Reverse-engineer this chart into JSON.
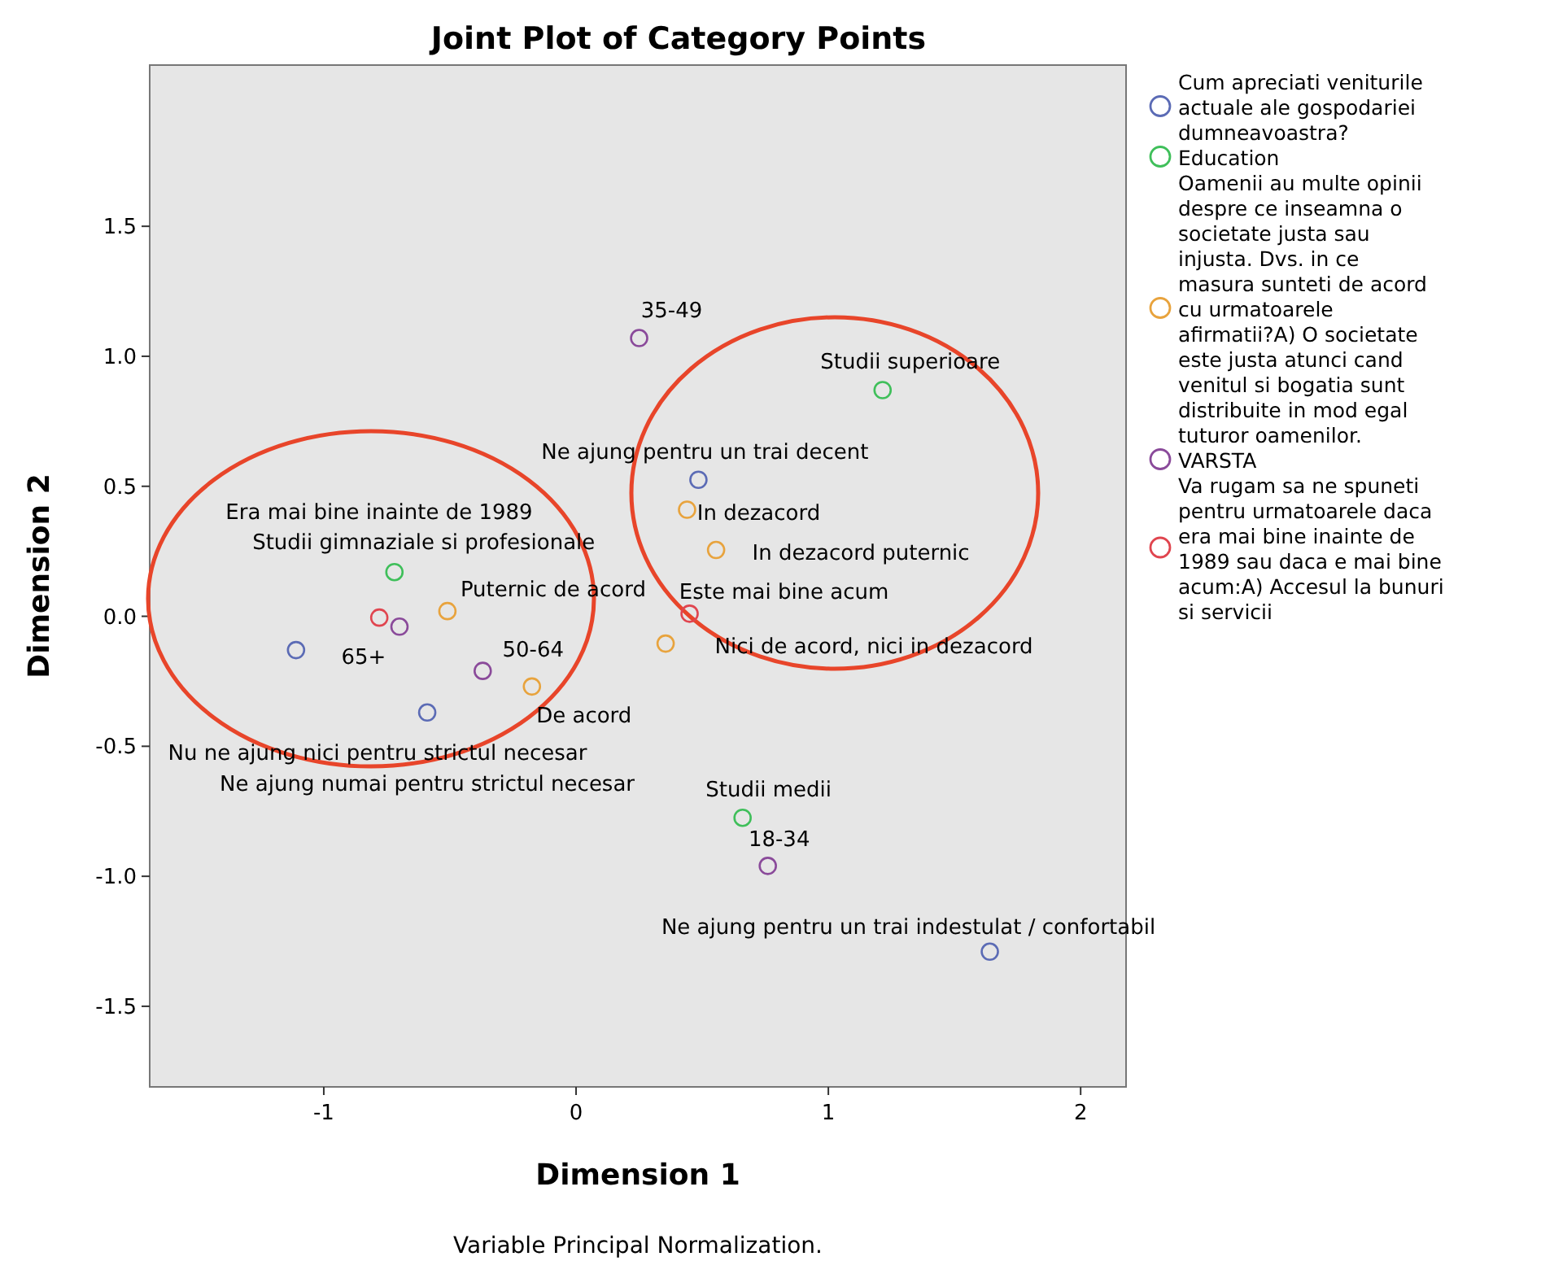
{
  "chart_data": {
    "type": "scatter",
    "title": "Joint Plot of Category Points",
    "xlabel": "Dimension 1",
    "ylabel": "Dimension 2",
    "xlim": [
      -1.69,
      2.18
    ],
    "ylim": [
      -1.81,
      2.12
    ],
    "xticks": [
      -1,
      0,
      1,
      2
    ],
    "yticks": [
      {
        "value": -1.5,
        "label": "-1.5"
      },
      {
        "value": -1,
        "label": "-1.0"
      },
      -0.5,
      {
        "value": 0,
        "label": "0.0"
      },
      0.5,
      {
        "value": 1,
        "label": "1.0"
      },
      1.5
    ],
    "marker": "circle",
    "legend": "right",
    "grid": false,
    "series": [
      {
        "name": "Cum apreciati veniturile actuale ale gospodariei dumneavoastra?",
        "color": "#5b6bb5",
        "x": [
          0.485,
          -1.11,
          -0.59,
          1.64
        ],
        "values": [
          0.525,
          -0.13,
          -0.37,
          -1.29
        ]
      },
      {
        "name": "Education",
        "color": "#3fbf5a",
        "x": [
          1.215,
          -0.72,
          0.66
        ],
        "values": [
          0.87,
          0.17,
          -0.775
        ]
      },
      {
        "name": "Oamenii au multe opinii despre ce inseamna o societate justa sau injusta. Dvs. in ce masura sunteti de acord cu urmatoarele afirmatii?A) O societate este justa atunci cand venitul si bogatia sunt distribuite in mod egal tuturor oamenilor.",
        "color": "#e8a33d",
        "x": [
          0.44,
          0.555,
          -0.51,
          0.355,
          -0.175
        ],
        "values": [
          0.41,
          0.255,
          0.02,
          -0.105,
          -0.27
        ]
      },
      {
        "name": "VARSTA",
        "color": "#8a4a9a",
        "x": [
          0.25,
          -0.7,
          -0.37,
          0.76
        ],
        "values": [
          1.07,
          -0.04,
          -0.21,
          -0.96
        ]
      },
      {
        "name": "Va rugam sa ne spuneti pentru urmatoarele daca era mai bine inainte de 1989 sau daca e mai bine acum:A) Accesul la bunuri si servicii",
        "color": "#e0454f",
        "x": [
          -0.78,
          0.45
        ],
        "values": [
          -0.005,
          0.01
        ]
      }
    ],
    "annotations": [
      {
        "text": "35-49",
        "x": 0.25,
        "y": 1.07
      },
      {
        "text": "Studii superioare",
        "x": 1.215,
        "y": 0.87
      },
      {
        "text": "Ne ajung pentru un trai decent",
        "x": 0.485,
        "y": 0.525
      },
      {
        "text": "Studii gimnaziale si profesionale",
        "x": -0.72,
        "y": 0.17
      },
      {
        "text": "In dezacord",
        "x": 0.44,
        "y": 0.41
      },
      {
        "text": "In dezacord puternic",
        "x": 0.555,
        "y": 0.255
      },
      {
        "text": "Puternic de acord",
        "x": -0.51,
        "y": 0.02
      },
      {
        "text": "Este mai bine acum",
        "x": 0.45,
        "y": 0.01
      },
      {
        "text": "65+",
        "x": -0.7,
        "y": -0.04
      },
      {
        "text": "50-64",
        "x": -0.37,
        "y": -0.21
      },
      {
        "text": "Nici de acord, nici in dezacord",
        "x": 0.355,
        "y": -0.105
      },
      {
        "text": "De acord",
        "x": -0.175,
        "y": -0.27
      },
      {
        "text": "Ne ajung numai pentru strictul necesar",
        "x": -0.59,
        "y": -0.37
      },
      {
        "text": "Studii medii",
        "x": 0.66,
        "y": -0.775
      },
      {
        "text": "18-34",
        "x": 0.76,
        "y": -0.96
      },
      {
        "text": "Ne ajung pentru un trai indestulat / confortabil",
        "x": 1.64,
        "y": -1.29
      },
      "Era mai bine inainte de 1989",
      "Nu ne ajung nici pentru strictul necesar",
      "Variable Principal Normalization."
    ]
  }
}
